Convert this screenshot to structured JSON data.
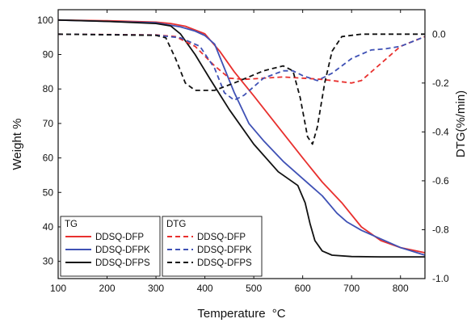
{
  "chart_data": {
    "type": "line",
    "xlabel": "Temperature",
    "xlabel_unit": "°C",
    "ylabel": "Weight %",
    "y2label": "DTG(%/min)",
    "xlim": [
      100,
      850
    ],
    "xticks": [
      100,
      200,
      300,
      400,
      500,
      600,
      700,
      800
    ],
    "ylim": [
      25,
      103
    ],
    "yticks": [
      30,
      40,
      50,
      60,
      70,
      80,
      90,
      100
    ],
    "y2lim": [
      -1.0,
      0.1
    ],
    "y2ticks": [
      0.0,
      -0.2,
      -0.4,
      -0.6,
      -0.8,
      -1.0
    ],
    "y2tick_labels": [
      "0.0",
      "-0.2",
      "-0.4",
      "-0.6",
      "-0.8",
      "-1.0"
    ],
    "grid": false,
    "legend_groups": [
      {
        "title": "TG",
        "axis": "left",
        "dash": "solid"
      },
      {
        "title": "DTG",
        "axis": "right",
        "dash": "dashed"
      }
    ],
    "colors": {
      "DDSQ-DFP": "#e8302e",
      "DDSQ-DFPK": "#3f51b5",
      "DDSQ-DFPS": "#111111"
    },
    "series": [
      {
        "group": "TG",
        "name": "DDSQ-DFP",
        "axis": "left",
        "x": [
          100,
          200,
          300,
          330,
          360,
          400,
          430,
          460,
          500,
          550,
          600,
          640,
          680,
          720,
          760,
          800,
          850
        ],
        "y": [
          100,
          99.8,
          99.4,
          99.0,
          98.2,
          96.0,
          91.0,
          85.0,
          78.0,
          69.0,
          60.0,
          53.0,
          47.0,
          40.0,
          36.0,
          34.0,
          32.5
        ]
      },
      {
        "group": "TG",
        "name": "DDSQ-DFPK",
        "axis": "left",
        "x": [
          100,
          200,
          300,
          350,
          380,
          400,
          420,
          440,
          460,
          490,
          520,
          560,
          600,
          640,
          670,
          690,
          720,
          760,
          800,
          850
        ],
        "y": [
          100,
          99.6,
          99.2,
          98.0,
          96.8,
          95.5,
          93.0,
          86.0,
          79.0,
          70.0,
          65.0,
          59.0,
          54.0,
          49.0,
          44.0,
          41.5,
          39.0,
          36.5,
          34.0,
          31.8
        ]
      },
      {
        "group": "TG",
        "name": "DDSQ-DFPS",
        "axis": "left",
        "x": [
          100,
          200,
          300,
          330,
          350,
          380,
          410,
          450,
          500,
          550,
          590,
          605,
          615,
          625,
          640,
          660,
          700,
          760,
          850
        ],
        "y": [
          100,
          99.6,
          99.0,
          98.3,
          96.0,
          90.0,
          83.0,
          74.0,
          64.0,
          56.0,
          52.0,
          47.0,
          41.0,
          36.0,
          33.0,
          31.8,
          31.4,
          31.3,
          31.3
        ]
      },
      {
        "group": "DTG",
        "name": "DDSQ-DFP",
        "axis": "right",
        "x": [
          100,
          300,
          340,
          380,
          420,
          450,
          480,
          520,
          560,
          600,
          640,
          680,
          700,
          720,
          760,
          800,
          850
        ],
        "y": [
          0.0,
          -0.003,
          -0.01,
          -0.05,
          -0.13,
          -0.18,
          -0.185,
          -0.18,
          -0.175,
          -0.18,
          -0.185,
          -0.195,
          -0.2,
          -0.19,
          -0.12,
          -0.05,
          -0.01
        ]
      },
      {
        "group": "DTG",
        "name": "DDSQ-DFPK",
        "axis": "right",
        "x": [
          100,
          300,
          350,
          390,
          420,
          440,
          460,
          480,
          520,
          560,
          580,
          600,
          630,
          660,
          700,
          740,
          770,
          800,
          850
        ],
        "y": [
          0.0,
          -0.004,
          -0.015,
          -0.05,
          -0.14,
          -0.24,
          -0.27,
          -0.25,
          -0.18,
          -0.15,
          -0.15,
          -0.17,
          -0.19,
          -0.16,
          -0.1,
          -0.065,
          -0.06,
          -0.05,
          -0.01
        ]
      },
      {
        "group": "DTG",
        "name": "DDSQ-DFPS",
        "axis": "right",
        "x": [
          100,
          300,
          320,
          340,
          360,
          380,
          420,
          460,
          520,
          560,
          580,
          595,
          610,
          620,
          630,
          645,
          660,
          680,
          720,
          850
        ],
        "y": [
          0.0,
          -0.005,
          -0.015,
          -0.1,
          -0.2,
          -0.23,
          -0.23,
          -0.2,
          -0.15,
          -0.13,
          -0.15,
          -0.26,
          -0.42,
          -0.45,
          -0.38,
          -0.2,
          -0.07,
          -0.01,
          0.0,
          0.0
        ]
      }
    ]
  }
}
